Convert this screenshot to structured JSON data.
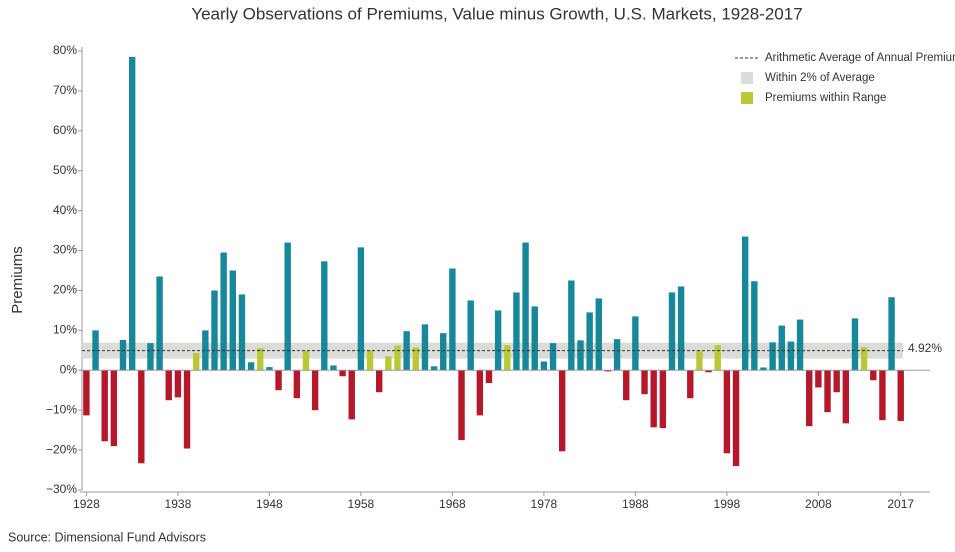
{
  "chart_data": {
    "type": "bar",
    "title": "Yearly Observations of Premiums, Value minus Growth, U.S. Markets, 1928-2017",
    "y_label": "Premiums",
    "source": "Source: Dimensional Fund Advisors",
    "x": [
      1928,
      1929,
      1930,
      1931,
      1932,
      1933,
      1934,
      1935,
      1936,
      1937,
      1938,
      1939,
      1940,
      1941,
      1942,
      1943,
      1944,
      1945,
      1946,
      1947,
      1948,
      1949,
      1950,
      1951,
      1952,
      1953,
      1954,
      1955,
      1956,
      1957,
      1958,
      1959,
      1960,
      1961,
      1962,
      1963,
      1964,
      1965,
      1966,
      1967,
      1968,
      1969,
      1970,
      1971,
      1972,
      1973,
      1974,
      1975,
      1976,
      1977,
      1978,
      1979,
      1980,
      1981,
      1982,
      1983,
      1984,
      1985,
      1986,
      1987,
      1988,
      1989,
      1990,
      1991,
      1992,
      1993,
      1994,
      1995,
      1996,
      1997,
      1998,
      1999,
      2000,
      2001,
      2002,
      2003,
      2004,
      2005,
      2006,
      2007,
      2008,
      2009,
      2010,
      2011,
      2012,
      2013,
      2014,
      2015,
      2016,
      2017
    ],
    "values": [
      -11.3,
      10,
      -17.8,
      -19,
      7.6,
      78.5,
      -23.3,
      6.8,
      23.5,
      -7.5,
      -6.8,
      -19.6,
      4.3,
      10,
      20,
      29.5,
      25,
      19,
      2,
      5.5,
      0.8,
      -5,
      32,
      -7,
      4.8,
      -10,
      27.3,
      1.2,
      -1.5,
      -12.3,
      30.8,
      5,
      -5.5,
      3.5,
      6.2,
      9.8,
      5.7,
      11.5,
      1,
      9.3,
      25.5,
      -17.5,
      17.5,
      -11.3,
      -3.2,
      15,
      6.3,
      19.5,
      32,
      16,
      2.2,
      6.8,
      -20.3,
      22.5,
      7.5,
      14.5,
      18,
      -0.3,
      7.8,
      -7.5,
      13.5,
      -6,
      -14.3,
      -14.5,
      19.5,
      21,
      -7,
      4.8,
      -0.5,
      6.3,
      -20.8,
      -24,
      33.5,
      22.3,
      0.7,
      7,
      11.2,
      7.2,
      12.7,
      -14,
      -4.3,
      -10.5,
      -5.5,
      -13.3,
      13,
      5.8,
      -2.5,
      -12.5,
      18.3,
      -12.7
    ],
    "colors": [
      "#b5182a",
      "#17879a",
      "#b5182a",
      "#b5182a",
      "#17879a",
      "#17879a",
      "#b5182a",
      "#17879a",
      "#17879a",
      "#b5182a",
      "#b5182a",
      "#b5182a",
      "#b8c935",
      "#17879a",
      "#17879a",
      "#17879a",
      "#17879a",
      "#17879a",
      "#17879a",
      "#b8c935",
      "#17879a",
      "#b5182a",
      "#17879a",
      "#b5182a",
      "#b8c935",
      "#b5182a",
      "#17879a",
      "#17879a",
      "#b5182a",
      "#b5182a",
      "#17879a",
      "#b8c935",
      "#b5182a",
      "#b8c935",
      "#b8c935",
      "#17879a",
      "#b8c935",
      "#17879a",
      "#17879a",
      "#17879a",
      "#17879a",
      "#b5182a",
      "#17879a",
      "#b5182a",
      "#b5182a",
      "#17879a",
      "#b8c935",
      "#17879a",
      "#17879a",
      "#17879a",
      "#17879a",
      "#17879a",
      "#b5182a",
      "#17879a",
      "#17879a",
      "#17879a",
      "#17879a",
      "#b5182a",
      "#17879a",
      "#b5182a",
      "#17879a",
      "#b5182a",
      "#b5182a",
      "#b5182a",
      "#17879a",
      "#17879a",
      "#b5182a",
      "#b8c935",
      "#b5182a",
      "#b8c935",
      "#b5182a",
      "#b5182a",
      "#17879a",
      "#17879a",
      "#17879a",
      "#17879a",
      "#17879a",
      "#17879a",
      "#17879a",
      "#b5182a",
      "#b5182a",
      "#b5182a",
      "#b5182a",
      "#b5182a",
      "#17879a",
      "#b8c935",
      "#b5182a",
      "#b5182a",
      "#17879a",
      "#b5182a"
    ],
    "average": 4.92,
    "average_label": "4.92%",
    "band": [
      2.92,
      6.92
    ],
    "band_color": "#dcdcd8",
    "in_range_color": "#b8c935",
    "xlim": [
      1927.3,
      2020.2
    ],
    "xticks": [
      1928,
      1938,
      1948,
      1958,
      1968,
      1978,
      1988,
      1998,
      2008,
      2017
    ],
    "ylim": [
      -30,
      80
    ],
    "yticks": [
      {
        "value": -30,
        "label": "−30%"
      },
      {
        "value": -20,
        "label": "−20%"
      },
      {
        "value": -10,
        "label": "−10%"
      },
      {
        "value": 0,
        "label": "0%"
      },
      {
        "value": 10,
        "label": "10%"
      },
      {
        "value": 20,
        "label": "20%"
      },
      {
        "value": 30,
        "label": "30%"
      },
      {
        "value": 40,
        "label": "40%"
      },
      {
        "value": 50,
        "label": "50%"
      },
      {
        "value": 60,
        "label": "60%"
      },
      {
        "value": 70,
        "label": "70%"
      },
      {
        "value": 80,
        "label": "80%"
      }
    ],
    "legend": [
      "Arithmetic Average of Annual Premiums",
      "Within 2% of Average",
      "Premiums within Range"
    ]
  }
}
